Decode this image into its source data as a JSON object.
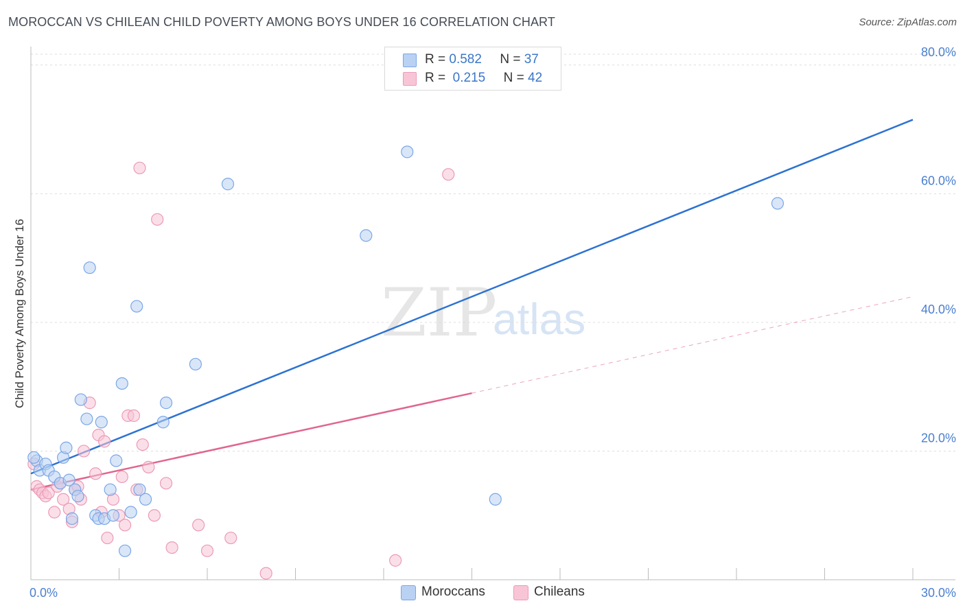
{
  "chart_data": {
    "type": "scatter",
    "title": "MOROCCAN VS CHILEAN CHILD POVERTY AMONG BOYS UNDER 16 CORRELATION CHART",
    "source": "Source: ZipAtlas.com",
    "ylabel": "Child Poverty Among Boys Under 16",
    "xlabel": "",
    "xlim": [
      0,
      30
    ],
    "ylim": [
      0,
      82
    ],
    "x_tick_labels": [
      {
        "value": 0,
        "label": "0.0%"
      },
      {
        "value": 30,
        "label": "30.0%"
      }
    ],
    "y_tick_labels": [
      {
        "value": 20,
        "label": "20.0%"
      },
      {
        "value": 40,
        "label": "40.0%"
      },
      {
        "value": 60,
        "label": "60.0%"
      },
      {
        "value": 80,
        "label": "80.0%"
      }
    ],
    "x_minor_ticks": [
      3,
      6,
      9,
      12,
      15,
      18,
      21,
      24,
      27,
      30
    ],
    "watermark": {
      "part1": "ZIP",
      "part2": "atlas"
    },
    "legend": [
      {
        "r_label": "R =",
        "r": "0.582",
        "n_label": "N =",
        "n": "37"
      },
      {
        "r_label": "R =",
        "r": "0.215",
        "n_label": "N =",
        "n": "42"
      }
    ],
    "series": [
      {
        "name": "Moroccans",
        "color": "#7aa6e6",
        "fill": "#b9d1f3",
        "line_color": "#2c72d2",
        "trend": {
          "x0": 0.0,
          "y0": 16.5,
          "x1": 30.0,
          "y1": 71.5
        },
        "points": [
          [
            0.2,
            18.5
          ],
          [
            0.3,
            17.0
          ],
          [
            0.5,
            18.0
          ],
          [
            0.6,
            17.0
          ],
          [
            0.8,
            16.0
          ],
          [
            1.0,
            15.0
          ],
          [
            1.1,
            19.0
          ],
          [
            1.2,
            20.5
          ],
          [
            1.3,
            15.5
          ],
          [
            1.4,
            9.5
          ],
          [
            1.5,
            14.0
          ],
          [
            1.6,
            13.0
          ],
          [
            1.7,
            28.0
          ],
          [
            1.9,
            25.0
          ],
          [
            2.0,
            48.5
          ],
          [
            2.2,
            10.0
          ],
          [
            2.3,
            9.5
          ],
          [
            2.4,
            24.5
          ],
          [
            2.5,
            9.5
          ],
          [
            2.7,
            14.0
          ],
          [
            2.8,
            10.0
          ],
          [
            2.9,
            18.5
          ],
          [
            3.1,
            30.5
          ],
          [
            3.2,
            4.5
          ],
          [
            3.4,
            10.5
          ],
          [
            3.6,
            42.5
          ],
          [
            3.7,
            14.0
          ],
          [
            3.9,
            12.5
          ],
          [
            4.5,
            24.5
          ],
          [
            4.6,
            27.5
          ],
          [
            5.6,
            33.5
          ],
          [
            6.7,
            61.5
          ],
          [
            11.4,
            53.5
          ],
          [
            12.8,
            66.5
          ],
          [
            15.8,
            12.5
          ],
          [
            25.4,
            58.5
          ],
          [
            0.1,
            19.0
          ]
        ]
      },
      {
        "name": "Chileans",
        "color": "#eb9ab6",
        "fill": "#f8c5d6",
        "line_color": "#e0658f",
        "trend": {
          "x0": 0.0,
          "y0": 14.0,
          "x1": 15.0,
          "y1": 29.0
        },
        "trend_dashed": {
          "x0": 15.0,
          "y0": 29.0,
          "x1": 30.0,
          "y1": 44.0
        },
        "points": [
          [
            0.2,
            14.5
          ],
          [
            0.3,
            14.0
          ],
          [
            0.4,
            13.5
          ],
          [
            0.5,
            13.0
          ],
          [
            0.6,
            13.5
          ],
          [
            0.8,
            10.5
          ],
          [
            0.9,
            14.5
          ],
          [
            1.0,
            15.0
          ],
          [
            1.1,
            12.5
          ],
          [
            1.3,
            11.0
          ],
          [
            1.4,
            9.0
          ],
          [
            1.5,
            14.0
          ],
          [
            1.6,
            14.5
          ],
          [
            1.7,
            12.5
          ],
          [
            1.8,
            20.0
          ],
          [
            2.0,
            27.5
          ],
          [
            2.2,
            16.5
          ],
          [
            2.3,
            22.5
          ],
          [
            2.4,
            10.5
          ],
          [
            2.5,
            21.5
          ],
          [
            2.6,
            6.5
          ],
          [
            2.8,
            12.5
          ],
          [
            3.0,
            10.0
          ],
          [
            3.1,
            16.0
          ],
          [
            3.2,
            8.5
          ],
          [
            3.3,
            25.5
          ],
          [
            3.5,
            25.5
          ],
          [
            3.6,
            14.0
          ],
          [
            3.7,
            64.0
          ],
          [
            3.8,
            21.0
          ],
          [
            4.0,
            17.5
          ],
          [
            4.2,
            10.0
          ],
          [
            4.3,
            56.0
          ],
          [
            4.6,
            15.0
          ],
          [
            4.8,
            5.0
          ],
          [
            5.7,
            8.5
          ],
          [
            6.0,
            4.5
          ],
          [
            6.8,
            6.5
          ],
          [
            8.0,
            1.0
          ],
          [
            12.4,
            3.0
          ],
          [
            14.2,
            63.0
          ],
          [
            0.1,
            18.0
          ]
        ]
      }
    ]
  }
}
